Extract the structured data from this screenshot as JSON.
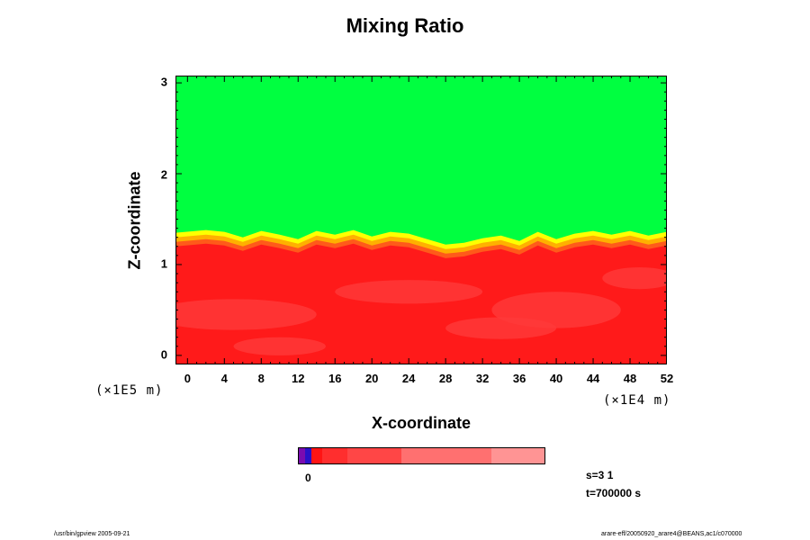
{
  "chart_data": {
    "type": "heatmap",
    "title": "Mixing Ratio",
    "xlabel": "X-coordinate",
    "ylabel": "Z-coordinate",
    "x_unit": "(×1E4 m)",
    "z_unit": "(×1E5 m)",
    "xlim": [
      -1.3,
      52
    ],
    "ylim": [
      -0.1,
      3.08
    ],
    "x_ticks": [
      "0",
      "4",
      "8",
      "12",
      "16",
      "20",
      "24",
      "28",
      "32",
      "36",
      "40",
      "44",
      "48",
      "52"
    ],
    "y_ticks": [
      "0",
      "1",
      "2",
      "3"
    ],
    "grid": false,
    "interface_height": {
      "x": [
        -1.3,
        2,
        4,
        6,
        8,
        10,
        12,
        14,
        16,
        18,
        20,
        22,
        24,
        26,
        28,
        30,
        32,
        34,
        36,
        38,
        40,
        42,
        44,
        46,
        48,
        50,
        52
      ],
      "z": [
        1.35,
        1.38,
        1.36,
        1.3,
        1.37,
        1.33,
        1.28,
        1.37,
        1.33,
        1.38,
        1.31,
        1.36,
        1.34,
        1.28,
        1.22,
        1.24,
        1.29,
        1.32,
        1.26,
        1.36,
        1.28,
        1.34,
        1.37,
        1.33,
        1.37,
        1.32,
        1.36
      ]
    },
    "regions": [
      {
        "name": "upper",
        "color": "#00ff40",
        "z_range": [
          1.4,
          3.08
        ]
      },
      {
        "name": "lower",
        "color": "#ff1a1a",
        "z_range": [
          -0.1,
          1.2
        ]
      }
    ],
    "colorbar": {
      "label_zero": "0",
      "colors": [
        "#7a0bb0",
        "#2a10c8",
        "#ff1414",
        "#ff2e2e",
        "#ff4646",
        "#ff7070",
        "#ff9494"
      ],
      "widths": [
        8,
        7,
        12,
        28,
        60,
        100,
        60
      ]
    }
  },
  "info": {
    "s": "s=3 1",
    "t": "t=700000 s"
  },
  "footer": {
    "left": "/usr/bin/gpview 2005-09-21",
    "right": "arare-eff/20050920_arare4@BEANS,ac1/c070000"
  }
}
